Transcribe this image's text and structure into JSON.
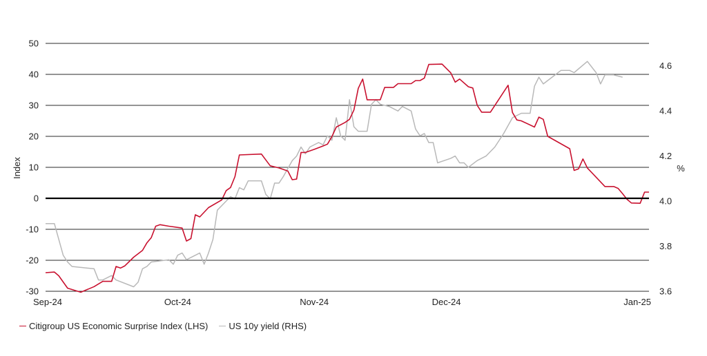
{
  "chart_data": {
    "type": "line",
    "x_ticks": [
      "Sep-24",
      "Oct-24",
      "Nov-24",
      "Dec-24",
      "Jan-25"
    ],
    "y_left": {
      "label": "Index",
      "ticks": [
        50,
        40,
        30,
        20,
        10,
        0,
        -10,
        -20,
        -30
      ],
      "ylim": [
        -30,
        50
      ]
    },
    "y_right": {
      "label": "%",
      "ticks": [
        "4.6",
        "4.4",
        "4.2",
        "4.0",
        "3.8",
        "3.6"
      ],
      "ylim": [
        3.6,
        4.7
      ]
    },
    "grid": true,
    "legend_position": "bottom-left",
    "series": [
      {
        "name": "Citigroup US Economic Surprise Index (LHS)",
        "axis": "left",
        "color": "#c8102e",
        "points": [
          [
            "2024-09-01",
            -24
          ],
          [
            "2024-09-03",
            -23.8
          ],
          [
            "2024-09-04",
            -25
          ],
          [
            "2024-09-06",
            -29
          ],
          [
            "2024-09-09",
            -30.3
          ],
          [
            "2024-09-12",
            -28.5
          ],
          [
            "2024-09-14",
            -26.8
          ],
          [
            "2024-09-16",
            -26.8
          ],
          [
            "2024-09-17",
            -22
          ],
          [
            "2024-09-18",
            -22.5
          ],
          [
            "2024-09-19",
            -21.8
          ],
          [
            "2024-09-21",
            -19
          ],
          [
            "2024-09-23",
            -16.8
          ],
          [
            "2024-09-24",
            -14.4
          ],
          [
            "2024-09-25",
            -12.7
          ],
          [
            "2024-09-26",
            -9
          ],
          [
            "2024-09-27",
            -8.5
          ],
          [
            "2024-09-29",
            -9
          ],
          [
            "2024-10-02",
            -9.6
          ],
          [
            "2024-10-03",
            -13.8
          ],
          [
            "2024-10-04",
            -13
          ],
          [
            "2024-10-05",
            -5.3
          ],
          [
            "2024-10-06",
            -6
          ],
          [
            "2024-10-08",
            -3
          ],
          [
            "2024-10-11",
            -0.5
          ],
          [
            "2024-10-12",
            2.5
          ],
          [
            "2024-10-13",
            3.5
          ],
          [
            "2024-10-14",
            7
          ],
          [
            "2024-10-15",
            14
          ],
          [
            "2024-10-20",
            14.3
          ],
          [
            "2024-10-22",
            10.5
          ],
          [
            "2024-10-24",
            9.8
          ],
          [
            "2024-10-26",
            8.8
          ],
          [
            "2024-10-27",
            6
          ],
          [
            "2024-10-28",
            6.2
          ],
          [
            "2024-10-29",
            14.8
          ],
          [
            "2024-10-30",
            14.8
          ],
          [
            "2024-11-01",
            15.8
          ],
          [
            "2024-11-03",
            16.9
          ],
          [
            "2024-11-04",
            17.5
          ],
          [
            "2024-11-05",
            19.9
          ],
          [
            "2024-11-06",
            23
          ],
          [
            "2024-11-08",
            24.5
          ],
          [
            "2024-11-09",
            25.5
          ],
          [
            "2024-11-10",
            28.5
          ],
          [
            "2024-11-11",
            35.5
          ],
          [
            "2024-11-12",
            38.5
          ],
          [
            "2024-11-13",
            31.8
          ],
          [
            "2024-11-16",
            31.8
          ],
          [
            "2024-11-17",
            35.8
          ],
          [
            "2024-11-19",
            35.8
          ],
          [
            "2024-11-20",
            37
          ],
          [
            "2024-11-23",
            37
          ],
          [
            "2024-11-24",
            38
          ],
          [
            "2024-11-25",
            38
          ],
          [
            "2024-11-26",
            38.8
          ],
          [
            "2024-11-27",
            43.2
          ],
          [
            "2024-11-30",
            43.3
          ],
          [
            "2024-12-02",
            40.5
          ],
          [
            "2024-12-03",
            37.5
          ],
          [
            "2024-12-04",
            38.5
          ],
          [
            "2024-12-06",
            36
          ],
          [
            "2024-12-07",
            35.6
          ],
          [
            "2024-12-08",
            30
          ],
          [
            "2024-12-09",
            27.8
          ],
          [
            "2024-12-11",
            27.8
          ],
          [
            "2024-12-15",
            36.5
          ],
          [
            "2024-12-16",
            27.7
          ],
          [
            "2024-12-17",
            25.3
          ],
          [
            "2024-12-18",
            25
          ],
          [
            "2024-12-21",
            23
          ],
          [
            "2024-12-22",
            26.2
          ],
          [
            "2024-12-23",
            25.5
          ],
          [
            "2024-12-24",
            20
          ],
          [
            "2024-12-29",
            16
          ],
          [
            "2024-12-30",
            9
          ],
          [
            "2024-12-31",
            9.5
          ],
          [
            "2025-01-01",
            12.7
          ],
          [
            "2025-01-02",
            9.8
          ],
          [
            "2025-01-06",
            3.8
          ],
          [
            "2025-01-08",
            3.8
          ],
          [
            "2025-01-09",
            3.2
          ],
          [
            "2025-01-10",
            1.5
          ],
          [
            "2025-01-11",
            -0.3
          ],
          [
            "2025-01-12",
            -1.5
          ],
          [
            "2025-01-14",
            -1.6
          ],
          [
            "2025-01-15",
            2
          ],
          [
            "2025-01-16",
            2
          ]
        ]
      },
      {
        "name": "US 10y yield (RHS)",
        "axis": "right",
        "color": "#b8b8b8",
        "points": [
          [
            "2024-09-01",
            3.9
          ],
          [
            "2024-09-03",
            3.9
          ],
          [
            "2024-09-05",
            3.76
          ],
          [
            "2024-09-06",
            3.73
          ],
          [
            "2024-09-07",
            3.71
          ],
          [
            "2024-09-12",
            3.7
          ],
          [
            "2024-09-13",
            3.65
          ],
          [
            "2024-09-14",
            3.65
          ],
          [
            "2024-09-16",
            3.67
          ],
          [
            "2024-09-17",
            3.65
          ],
          [
            "2024-09-21",
            3.62
          ],
          [
            "2024-09-22",
            3.64
          ],
          [
            "2024-09-23",
            3.7
          ],
          [
            "2024-09-24",
            3.71
          ],
          [
            "2024-09-25",
            3.73
          ],
          [
            "2024-09-29",
            3.74
          ],
          [
            "2024-09-30",
            3.72
          ],
          [
            "2024-10-01",
            3.76
          ],
          [
            "2024-10-02",
            3.77
          ],
          [
            "2024-10-03",
            3.74
          ],
          [
            "2024-10-06",
            3.77
          ],
          [
            "2024-10-07",
            3.72
          ],
          [
            "2024-10-08",
            3.77
          ],
          [
            "2024-10-09",
            3.83
          ],
          [
            "2024-10-10",
            3.96
          ],
          [
            "2024-10-11",
            3.98
          ],
          [
            "2024-10-13",
            4.02
          ],
          [
            "2024-10-14",
            4.01
          ],
          [
            "2024-10-15",
            4.06
          ],
          [
            "2024-10-16",
            4.05
          ],
          [
            "2024-10-17",
            4.09
          ],
          [
            "2024-10-20",
            4.09
          ],
          [
            "2024-10-21",
            4.03
          ],
          [
            "2024-10-22",
            4.01
          ],
          [
            "2024-10-23",
            4.08
          ],
          [
            "2024-10-24",
            4.08
          ],
          [
            "2024-10-25",
            4.11
          ],
          [
            "2024-10-27",
            4.18
          ],
          [
            "2024-10-28",
            4.2
          ],
          [
            "2024-10-29",
            4.24
          ],
          [
            "2024-10-30",
            4.21
          ],
          [
            "2024-10-31",
            4.24
          ],
          [
            "2024-11-02",
            4.26
          ],
          [
            "2024-11-03",
            4.25
          ],
          [
            "2024-11-04",
            4.29
          ],
          [
            "2024-11-05",
            4.27
          ],
          [
            "2024-11-06",
            4.37
          ],
          [
            "2024-11-07",
            4.29
          ],
          [
            "2024-11-08",
            4.27
          ],
          [
            "2024-11-09",
            4.45
          ],
          [
            "2024-11-10",
            4.33
          ],
          [
            "2024-11-11",
            4.31
          ],
          [
            "2024-11-13",
            4.31
          ],
          [
            "2024-11-14",
            4.43
          ],
          [
            "2024-11-15",
            4.45
          ],
          [
            "2024-11-16",
            4.43
          ],
          [
            "2024-11-18",
            4.42
          ],
          [
            "2024-11-20",
            4.4
          ],
          [
            "2024-11-21",
            4.42
          ],
          [
            "2024-11-23",
            4.4
          ],
          [
            "2024-11-24",
            4.32
          ],
          [
            "2024-11-25",
            4.29
          ],
          [
            "2024-11-26",
            4.3
          ],
          [
            "2024-11-27",
            4.26
          ],
          [
            "2024-11-28",
            4.26
          ],
          [
            "2024-11-29",
            4.17
          ],
          [
            "2024-12-02",
            4.19
          ],
          [
            "2024-12-03",
            4.2
          ],
          [
            "2024-12-04",
            4.17
          ],
          [
            "2024-12-05",
            4.17
          ],
          [
            "2024-12-06",
            4.15
          ],
          [
            "2024-12-08",
            4.18
          ],
          [
            "2024-12-10",
            4.2
          ],
          [
            "2024-12-12",
            4.24
          ],
          [
            "2024-12-14",
            4.3
          ],
          [
            "2024-12-16",
            4.37
          ],
          [
            "2024-12-18",
            4.39
          ],
          [
            "2024-12-20",
            4.39
          ],
          [
            "2024-12-21",
            4.51
          ],
          [
            "2024-12-22",
            4.55
          ],
          [
            "2024-12-23",
            4.52
          ],
          [
            "2024-12-25",
            4.55
          ],
          [
            "2024-12-27",
            4.58
          ],
          [
            "2024-12-28",
            4.58
          ],
          [
            "2024-12-29",
            4.58
          ],
          [
            "2024-12-30",
            4.57
          ],
          [
            "2025-01-02",
            4.62
          ],
          [
            "2025-01-04",
            4.57
          ],
          [
            "2025-01-05",
            4.52
          ],
          [
            "2025-01-06",
            4.56
          ],
          [
            "2025-01-08",
            4.56
          ],
          [
            "2025-01-10",
            4.55
          ]
        ]
      }
    ]
  }
}
